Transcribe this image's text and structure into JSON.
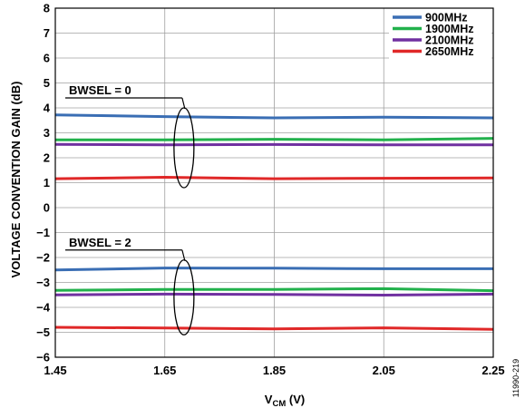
{
  "chart_data": {
    "type": "line",
    "title": "",
    "xlabel_main": "V",
    "xlabel_sub": "CM",
    "xlabel_unit": " (V)",
    "ylabel": "VOLTAGE CONVENTION GAIN (dB)",
    "xlim": [
      1.45,
      2.25
    ],
    "ylim": [
      -6,
      8
    ],
    "x_ticks": [
      1.45,
      1.65,
      1.85,
      2.05,
      2.25
    ],
    "x_tick_labels": [
      "1.45",
      "1.65",
      "1.85",
      "2.05",
      "2.25"
    ],
    "y_ticks": [
      8,
      7,
      6,
      5,
      4,
      3,
      2,
      1,
      0,
      -1,
      -2,
      -3,
      -4,
      -5,
      -6
    ],
    "y_tick_labels": [
      "8",
      "7",
      "6",
      "5",
      "4",
      "3",
      "2",
      "1",
      "0",
      "−1",
      "−2",
      "−3",
      "−4",
      "−5",
      "−6"
    ],
    "grid": true,
    "legend_position": "top-right",
    "legend": [
      {
        "name": "900MHz",
        "color": "#3a6eb4"
      },
      {
        "name": "1900MHz",
        "color": "#22b14c"
      },
      {
        "name": "2100MHz",
        "color": "#7030a0"
      },
      {
        "name": "2650MHz",
        "color": "#e02828"
      }
    ],
    "x": [
      1.45,
      1.65,
      1.85,
      2.05,
      2.25
    ],
    "series": [
      {
        "legend_index": 0,
        "group": "BWSEL = 0",
        "values": [
          3.72,
          3.65,
          3.6,
          3.63,
          3.6
        ]
      },
      {
        "legend_index": 1,
        "group": "BWSEL = 0",
        "values": [
          2.72,
          2.72,
          2.74,
          2.72,
          2.78
        ]
      },
      {
        "legend_index": 2,
        "group": "BWSEL = 0",
        "values": [
          2.54,
          2.52,
          2.53,
          2.52,
          2.52
        ]
      },
      {
        "legend_index": 3,
        "group": "BWSEL = 0",
        "values": [
          1.16,
          1.22,
          1.16,
          1.18,
          1.19
        ]
      },
      {
        "legend_index": 0,
        "group": "BWSEL = 2",
        "values": [
          -2.5,
          -2.42,
          -2.43,
          -2.45,
          -2.45
        ]
      },
      {
        "legend_index": 1,
        "group": "BWSEL = 2",
        "values": [
          -3.32,
          -3.28,
          -3.28,
          -3.25,
          -3.33
        ]
      },
      {
        "legend_index": 2,
        "group": "BWSEL = 2",
        "values": [
          -3.5,
          -3.47,
          -3.48,
          -3.51,
          -3.47
        ]
      },
      {
        "legend_index": 3,
        "group": "BWSEL = 2",
        "values": [
          -4.8,
          -4.83,
          -4.86,
          -4.82,
          -4.88
        ]
      }
    ],
    "annotations": [
      {
        "text": "BWSEL = 0",
        "ellipse_center": [
          1.685,
          2.4
        ],
        "ellipse_ry": 1.6
      },
      {
        "text": "BWSEL = 2",
        "ellipse_center": [
          1.685,
          -3.6
        ],
        "ellipse_ry": 1.5
      }
    ],
    "figure_id": "11990-219"
  }
}
